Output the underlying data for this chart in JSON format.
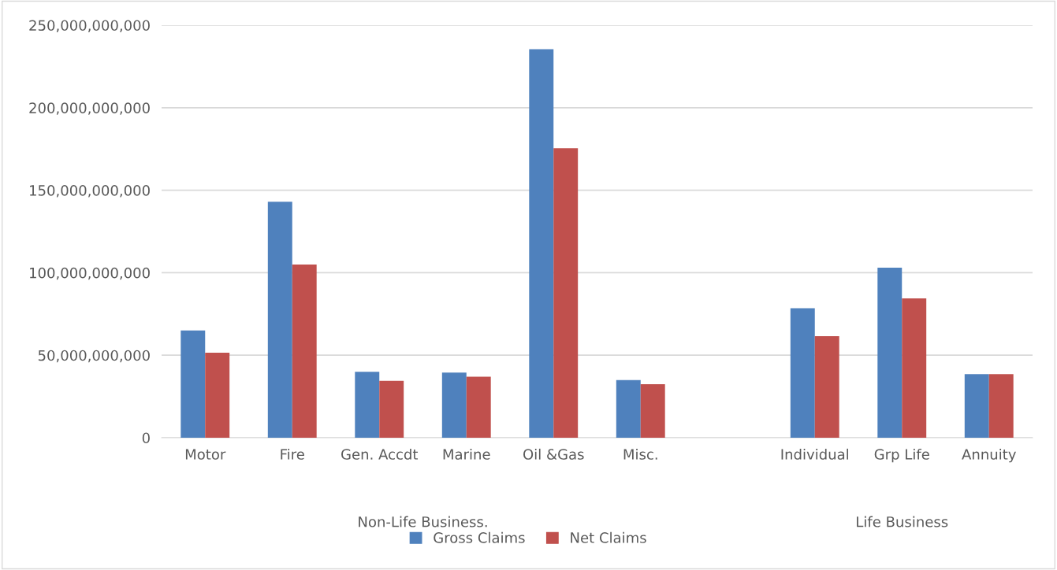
{
  "chart_data": {
    "type": "bar",
    "categories": [
      "Motor",
      "Fire",
      "Gen. Accdt",
      "Marine",
      "Oil &Gas",
      "Misc.",
      null,
      "Individual",
      "Grp Life",
      "Annuity"
    ],
    "series": [
      {
        "name": "Gross Claims",
        "color": "#4f81bd",
        "values": [
          65000000000,
          143000000000,
          40000000000,
          39500000000,
          235500000000,
          35000000000,
          null,
          78500000000,
          103000000000,
          38500000000
        ]
      },
      {
        "name": "Net Claims",
        "color": "#c0504d",
        "values": [
          51500000000,
          105000000000,
          34500000000,
          37000000000,
          175500000000,
          32500000000,
          null,
          61500000000,
          84500000000,
          38500000000
        ]
      }
    ],
    "annotations": [
      "Non-Life Business.",
      "Life Business"
    ],
    "ylim": [
      0,
      250000000000
    ],
    "yticks": [
      {
        "value": 0,
        "label": "0"
      },
      {
        "value": 50000000000,
        "label": "50,000,000,000"
      },
      {
        "value": 100000000000,
        "label": "100,000,000,000"
      },
      {
        "value": 150000000000,
        "label": "150,000,000,000"
      },
      {
        "value": 200000000000,
        "label": "200,000,000,000"
      },
      {
        "value": 250000000000,
        "label": "250,000,000,000"
      }
    ],
    "grid": "y",
    "legend": "bottom"
  }
}
